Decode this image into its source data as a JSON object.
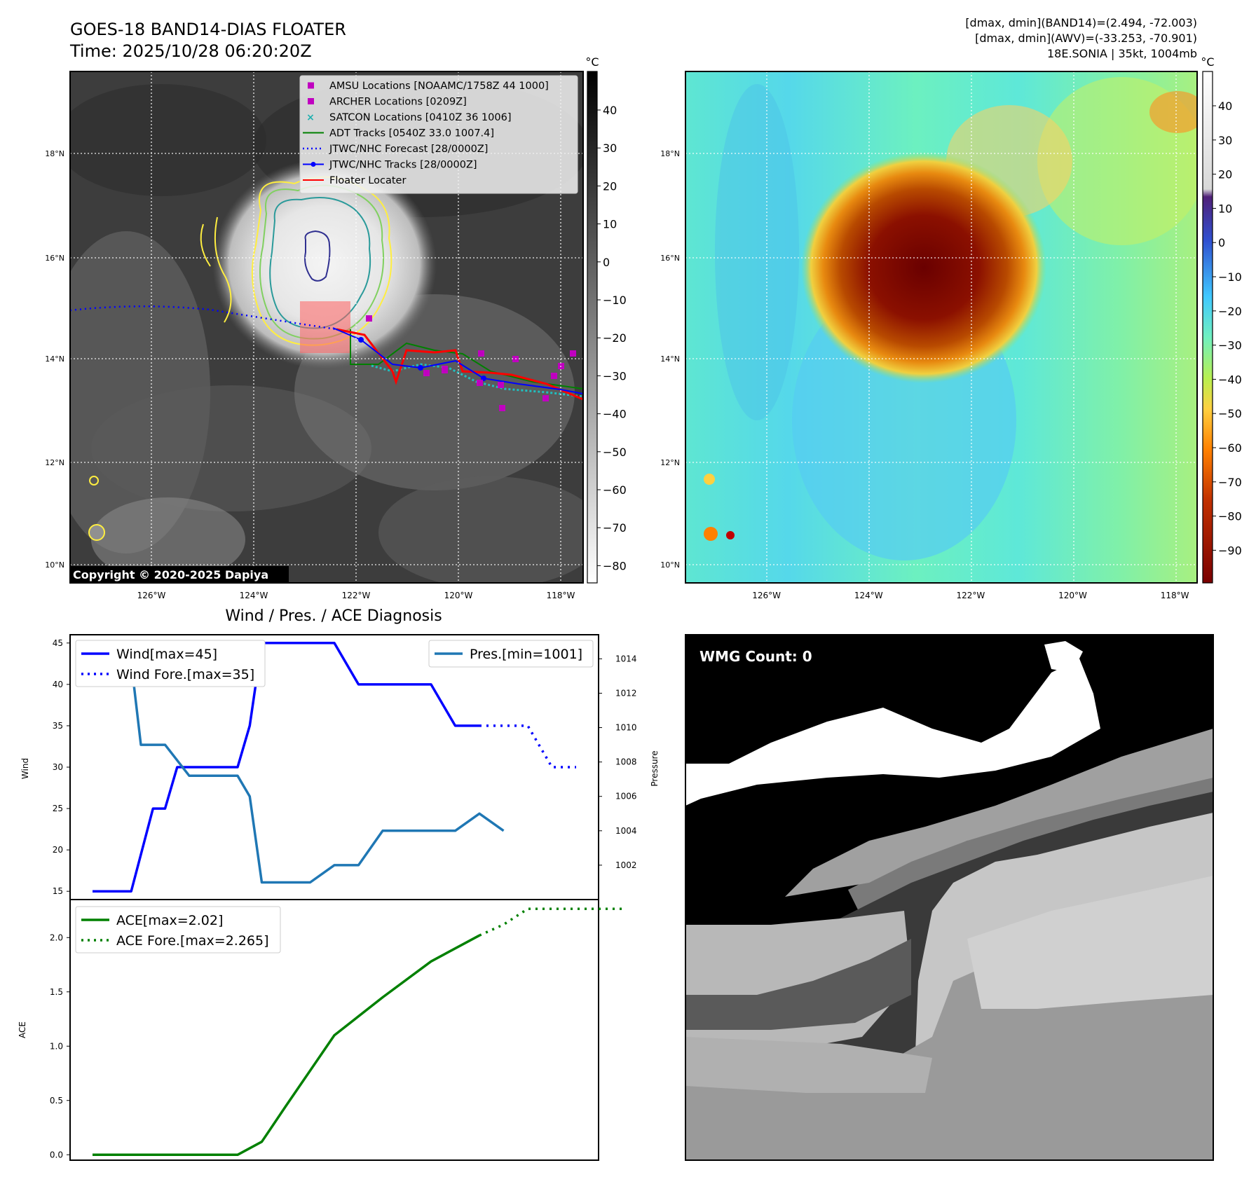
{
  "header": {
    "title": "GOES-18 BAND14-DIAS FLOATER",
    "time": "Time: 2025/10/28 06:20:20Z",
    "dmax_band14": "[dmax, dmin](BAND14)=(2.494, -72.003)",
    "dmax_awv": "[dmax, dmin](AWV)=(-33.253, -70.901)",
    "storm": "18E.SONIA | 35kt, 1004mb"
  },
  "copyright": "Copyright © 2020-2025 Dapiya",
  "map_axes": {
    "lat_ticks": [
      "18°N",
      "16°N",
      "14°N",
      "12°N",
      "10°N"
    ],
    "lon_ticks": [
      "126°W",
      "124°W",
      "122°W",
      "120°W",
      "118°W"
    ]
  },
  "colorbar_ir": {
    "unit": "°C",
    "ticks": [
      "40",
      "30",
      "20",
      "10",
      "0",
      "−10",
      "−20",
      "−30",
      "−40",
      "−50",
      "−60",
      "−70",
      "−80"
    ]
  },
  "colorbar_wv": {
    "unit": "°C",
    "ticks": [
      "40",
      "30",
      "20",
      "10",
      "0",
      "−10",
      "−20",
      "−30",
      "−40",
      "−50",
      "−60",
      "−70",
      "−80",
      "−90"
    ]
  },
  "legend": [
    {
      "label": "AMSU Locations [NOAAMC/1758Z 44 1000]",
      "kind": "square",
      "color": "#c000c0"
    },
    {
      "label": "ARCHER Locations [0209Z]",
      "kind": "square",
      "color": "#c000c0"
    },
    {
      "label": "SATCON Locations [0410Z 36 1006]",
      "kind": "x",
      "color": "#20b0b0"
    },
    {
      "label": "ADT Tracks [0540Z 33.0 1007.4]",
      "kind": "line",
      "color": "#008000"
    },
    {
      "label": "JTWC/NHC Forecast [28/0000Z]",
      "kind": "dotted",
      "color": "#0000ff"
    },
    {
      "label": "JTWC/NHC Tracks [28/0000Z]",
      "kind": "linedot",
      "color": "#0000ff"
    },
    {
      "label": "Floater Locater",
      "kind": "line",
      "color": "#ff0000"
    }
  ],
  "wmg": {
    "label": "WMG Count: 0"
  },
  "chart_data": [
    {
      "type": "line",
      "title": "Wind / Pres. / ACE Diagnosis",
      "ylabel": "Wind",
      "y2label": "Pressure",
      "ylim": [
        14,
        46
      ],
      "y2lim": [
        1000,
        1015.4
      ],
      "yticks": [
        15,
        20,
        25,
        30,
        35,
        40,
        45
      ],
      "y2ticks": [
        1002,
        1004,
        1006,
        1008,
        1010,
        1012,
        1014
      ],
      "x": [
        0,
        1,
        2,
        3,
        4,
        5,
        6,
        7,
        8,
        9,
        10,
        11,
        12,
        13,
        14,
        15,
        16,
        17,
        18,
        19,
        20
      ],
      "series": [
        {
          "name": "Wind[max=45]",
          "style": "solid",
          "color": "#0000ff",
          "axis": "left",
          "x": [
            0,
            1,
            1.6,
            2.5,
            3,
            3.5,
            4,
            5,
            6,
            6.5,
            7,
            8,
            9,
            10,
            11,
            12,
            13,
            14,
            15,
            16,
            17,
            18,
            19,
            20
          ],
          "values": [
            15,
            15,
            15,
            25,
            25,
            30,
            30,
            30,
            30,
            35,
            45,
            45,
            45,
            45,
            40,
            40,
            40,
            40,
            35,
            35,
            null,
            null,
            null,
            null
          ]
        },
        {
          "name": "Wind Fore.[max=35]",
          "style": "dotted",
          "color": "#0000ff",
          "axis": "left",
          "x": [
            16,
            17,
            18,
            19,
            20
          ],
          "values": [
            35,
            35,
            35,
            30,
            30
          ]
        },
        {
          "name": "Pres.[min=1001]",
          "style": "solid",
          "color": "#1f77b4",
          "axis": "right",
          "x": [
            0,
            1,
            1.5,
            2,
            3,
            4,
            5,
            6,
            6.5,
            7,
            8,
            9,
            10,
            11,
            12,
            13,
            14,
            15,
            16,
            17
          ],
          "values": [
            1015,
            1015,
            1015,
            1009,
            1009,
            1007.2,
            1007.2,
            1007.2,
            1006,
            1001,
            1001,
            1001,
            1002,
            1002,
            1004,
            1004,
            1004,
            1004,
            1005,
            1004
          ]
        }
      ]
    },
    {
      "type": "line",
      "ylabel": "ACE",
      "ylim": [
        -0.05,
        2.35
      ],
      "yticks": [
        "0.0",
        "0.5",
        "1.0",
        "1.5",
        "2.0"
      ],
      "series": [
        {
          "name": "ACE[max=2.02]",
          "style": "solid",
          "color": "#008000",
          "x": [
            0,
            2,
            4,
            6,
            7,
            8,
            10,
            12,
            14,
            16
          ],
          "values": [
            0,
            0,
            0,
            0,
            0.12,
            0.45,
            1.1,
            1.45,
            1.78,
            2.02
          ]
        },
        {
          "name": "ACE Fore.[max=2.265]",
          "style": "dotted",
          "color": "#008000",
          "x": [
            16,
            17,
            18,
            19,
            20,
            21,
            22
          ],
          "values": [
            2.02,
            2.12,
            2.265,
            2.265,
            2.265,
            2.265,
            2.265
          ]
        }
      ]
    }
  ]
}
